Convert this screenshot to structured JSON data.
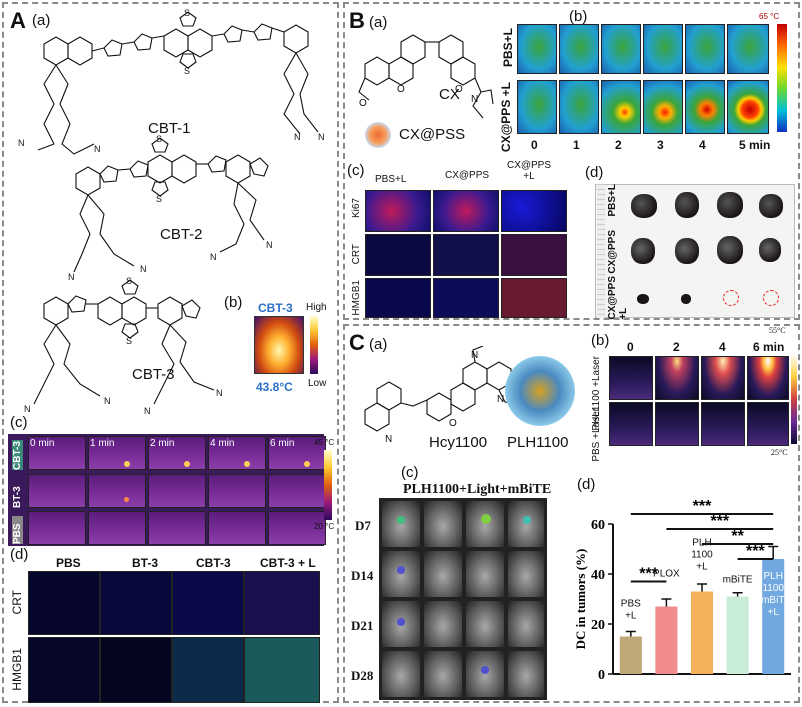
{
  "panel_a": {
    "letter": "A",
    "sub_a": "(a)",
    "sub_b": "(b)",
    "sub_c": "(c)",
    "sub_d": "(d)",
    "molecules": [
      "CBT-1",
      "CBT-2",
      "CBT-3"
    ],
    "thermal_label": "CBT-3",
    "thermal_high": "High",
    "thermal_low": "Low",
    "thermal_temp": "43.8°C",
    "time_labels": [
      "0 min",
      "1 min",
      "2 min",
      "4 min",
      "6 min"
    ],
    "row_labels": [
      "CBT-3",
      "BT-3",
      "PBS"
    ],
    "scale_max": "45 °C",
    "scale_min": "20 °C",
    "stain_cols": [
      "PBS",
      "BT-3",
      "CBT-3",
      "CBT-3 + L"
    ],
    "stain_rows": [
      "CRT",
      "HMGB1"
    ]
  },
  "panel_b": {
    "letter": "B",
    "sub_a": "(a)",
    "sub_b": "(b)",
    "sub_c": "(c)",
    "sub_d": "(d)",
    "molecule": "CX",
    "nano": "CX@PSS",
    "row_labels": [
      "PBS+L",
      "CX@PPS +L"
    ],
    "times": [
      "0",
      "1",
      "2",
      "3",
      "4",
      "5 min"
    ],
    "scale_max": "65 °C",
    "stain_cols": [
      "PBS+L",
      "CX@PPS",
      "CX@PPS +L"
    ],
    "stain_rows": [
      "Ki67",
      "CRT",
      "HMGB1"
    ],
    "tumor_rows": [
      "PBS+L",
      "CX@PPS",
      "CX@PPS +L"
    ]
  },
  "panel_c": {
    "letter": "C",
    "sub_a": "(a)",
    "sub_b": "(b)",
    "sub_c": "(c)",
    "sub_d": "(d)",
    "molecule": "Hcy1100",
    "nano": "PLH1100",
    "times": [
      "0",
      "2",
      "4",
      "6 min"
    ],
    "row_labels": [
      "PHL1100 +Laser",
      "PBS +Laser"
    ],
    "scale_max": "55°C",
    "scale_min": "25°C",
    "image_title": "PLH1100+Light+mBiTE",
    "days": [
      "D7",
      "D14",
      "D21",
      "D28"
    ],
    "significance": [
      "***",
      "***",
      "***",
      "**",
      "***"
    ]
  },
  "chart_data": {
    "type": "bar",
    "categories": [
      "PBS +L",
      "PLOX",
      "PLH 1100 +L",
      "mBiTE",
      "PLH 1100 +mBiTE +L"
    ],
    "values": [
      15,
      27,
      33,
      31,
      46
    ],
    "errors": [
      2,
      3,
      3,
      1.5,
      5
    ],
    "colors": [
      "#bfa878",
      "#f08c8c",
      "#f5b25a",
      "#c8ecd6",
      "#72a8e0"
    ],
    "ylabel": "DC in tumors (%)",
    "ylim": [
      0,
      60
    ],
    "yticks": [
      0,
      20,
      40,
      60
    ]
  }
}
